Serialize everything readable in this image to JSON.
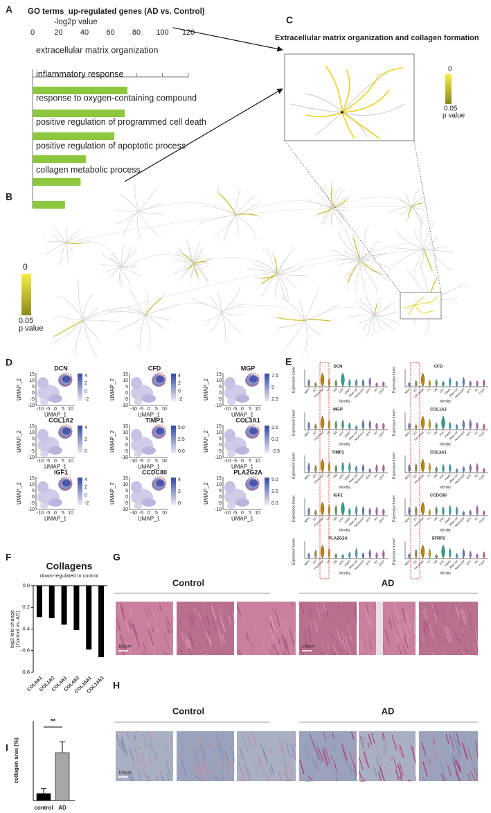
{
  "panel_labels": [
    "A",
    "B",
    "C",
    "D",
    "E",
    "F",
    "G",
    "H",
    "I"
  ],
  "chart_data": [
    {
      "type": "bar",
      "orientation": "horizontal",
      "title": "GO terms_up-regulated genes (AD vs. Control)",
      "xlabel": "-log2p value",
      "categories": [
        "extracellular matrix organization",
        "inflammatory response",
        "response to oxygen-containing compound",
        "positive regulation of programmed cell death",
        "positive regulation of apoptotic process",
        "collagen metabolic process"
      ],
      "values": [
        73,
        71,
        63,
        41,
        37,
        25
      ],
      "color": "#8dc63f",
      "label_colors": [
        "#e8198b",
        "#222222",
        "#222222",
        "#222222",
        "#222222",
        "#e8198b"
      ],
      "xlim": [
        0,
        120
      ],
      "xticks": [
        0,
        20,
        40,
        60,
        80,
        100,
        120
      ]
    },
    {
      "type": "bar",
      "title": "Collagens",
      "subtitle": "down-regulated in control",
      "ylabel": [
        "log2 fold change",
        "(Control vs. AD)"
      ],
      "categories": [
        "COL6A1",
        "COL1A2",
        "COL4A1",
        "COL4A2",
        "COL15A1",
        "COL14A1"
      ],
      "values": [
        -0.29,
        -0.3,
        -0.36,
        -0.41,
        -0.59,
        -0.66
      ],
      "color": "#000000",
      "ylim": [
        -0.8,
        0
      ],
      "yticks": [
        {
          "value": 0,
          "label": "0.0"
        },
        {
          "value": -0.2,
          "label": "-0.2"
        },
        {
          "value": -0.4,
          "label": "-0.4"
        },
        {
          "value": -0.6,
          "label": "-0.6"
        },
        {
          "value": -0.8,
          "label": "-0.8"
        }
      ]
    },
    {
      "type": "bar",
      "ylabel": "collagen area (%)",
      "categories": [
        "control",
        "AD"
      ],
      "values": [
        3.5,
        24
      ],
      "errors": [
        2.5,
        5.5
      ],
      "colors": [
        "#000000",
        "#a6a6a6"
      ],
      "ylim": [
        0,
        40
      ],
      "annotation": "**"
    }
  ],
  "network": {
    "title": "Extracellular matrix organization and collagen formation",
    "colorbar_top": "0",
    "colorbar_bottom": "0.05",
    "colorbar_label": "p value"
  },
  "umap": {
    "xlabel": "UMAP_1",
    "ylabel": "UMAP_2",
    "xticks": [
      "-10",
      "-5",
      "0",
      "5",
      "10"
    ],
    "yticks": [
      "15",
      "10",
      "5",
      "0",
      "-5",
      "-10"
    ],
    "panels": [
      {
        "gene": "DCN",
        "colorbar_ticks": [
          "4",
          "2",
          "0",
          "-2"
        ]
      },
      {
        "gene": "CFD",
        "colorbar_ticks": [
          "4",
          "2",
          "0",
          "-2"
        ]
      },
      {
        "gene": "MGP",
        "colorbar_ticks": [
          "7.5",
          "5",
          "2.5"
        ]
      },
      {
        "gene": "COL1A2",
        "colorbar_ticks": [
          "4",
          "2",
          "0"
        ]
      },
      {
        "gene": "TIMP1",
        "colorbar_ticks": [
          "5.0",
          "2.5",
          "0.0"
        ]
      },
      {
        "gene": "COL3A1",
        "colorbar_ticks": [
          "2.5",
          "0.0",
          "-2.5"
        ]
      },
      {
        "gene": "IGF1",
        "colorbar_ticks": [
          "4",
          "2",
          "0",
          "-2"
        ]
      },
      {
        "gene": "CCDC80",
        "colorbar_ticks": [
          "4",
          "2",
          "0"
        ]
      },
      {
        "gene": "PLA2G2A",
        "colorbar_ticks": [
          "5.0",
          "2.5",
          "0.0"
        ]
      }
    ]
  },
  "violin": {
    "ylabel": "Expression Level",
    "xlabel": "Identity",
    "cell_types": [
      "MNC",
      "EC",
      "Fibroblast",
      "TC",
      "SM",
      "VSC",
      "VSMC",
      "Mast cell",
      "Neutrophil",
      "EPC",
      "SC",
      "CD4T"
    ],
    "genes": [
      "DCN",
      "CFD",
      "MGP",
      "COL1A2",
      "TIMP1",
      "COL3A1",
      "IGF1",
      "CCDC80",
      "PLA2G2A",
      "SFRP2"
    ]
  },
  "histology": {
    "groups": [
      "Control",
      "AD"
    ],
    "scale_bar": "100μm"
  }
}
